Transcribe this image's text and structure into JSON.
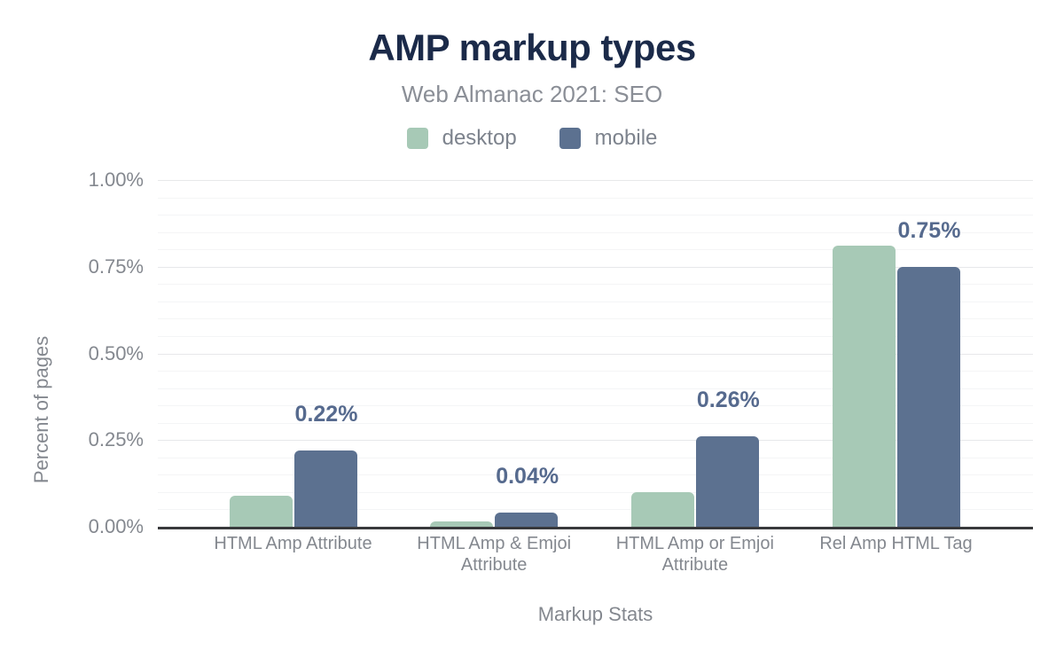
{
  "chart_data": {
    "type": "bar",
    "title": "AMP markup types",
    "subtitle": "Web Almanac 2021: SEO",
    "xlabel": "Markup Stats",
    "ylabel": "Percent of pages",
    "ylim": [
      0,
      1
    ],
    "ytick_interval": 0.25,
    "minor_gridline_interval": 0.05,
    "yticks": [
      "0.00%",
      "0.25%",
      "0.50%",
      "0.75%",
      "1.00%"
    ],
    "categories": [
      "HTML Amp Attribute",
      "HTML Amp & Emjoi\nAttribute",
      "HTML Amp or Emjoi\nAttribute",
      "Rel Amp HTML Tag"
    ],
    "series": [
      {
        "name": "desktop",
        "color": "#a7c9b6",
        "values": [
          0.09,
          0.015,
          0.1,
          0.81
        ]
      },
      {
        "name": "mobile",
        "color": "#5c7190",
        "values": [
          0.22,
          0.04,
          0.26,
          0.75
        ]
      }
    ],
    "data_labels": {
      "series": "mobile",
      "values": [
        "0.22%",
        "0.04%",
        "0.26%",
        "0.75%"
      ]
    },
    "legend_position": "top",
    "grid": "horizontal",
    "data_label_color": "#566a8e"
  }
}
